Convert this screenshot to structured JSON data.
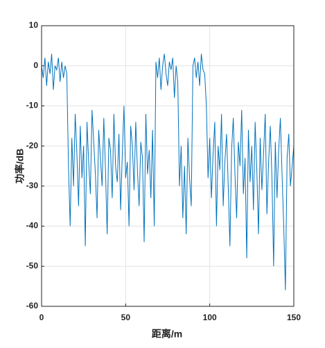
{
  "chart_data": {
    "type": "line",
    "xlabel": "距离/m",
    "ylabel": "功率/dB",
    "x": [
      0,
      1,
      2,
      3,
      4,
      5,
      6,
      7,
      8,
      9,
      10,
      11,
      12,
      13,
      14,
      15,
      16,
      17,
      18,
      19,
      20,
      21,
      22,
      23,
      24,
      25,
      26,
      27,
      28,
      29,
      30,
      31,
      32,
      33,
      34,
      35,
      36,
      37,
      38,
      39,
      40,
      41,
      42,
      43,
      44,
      45,
      46,
      47,
      48,
      49,
      50,
      51,
      52,
      53,
      54,
      55,
      56,
      57,
      58,
      59,
      60,
      61,
      62,
      63,
      64,
      65,
      66,
      67,
      68,
      69,
      70,
      71,
      72,
      73,
      74,
      75,
      76,
      77,
      78,
      79,
      80,
      81,
      82,
      83,
      84,
      85,
      86,
      87,
      88,
      89,
      90,
      91,
      92,
      93,
      94,
      95,
      96,
      97,
      98,
      99,
      100,
      101,
      102,
      103,
      104,
      105,
      106,
      107,
      108,
      109,
      110,
      111,
      112,
      113,
      114,
      115,
      116,
      117,
      118,
      119,
      120,
      121,
      122,
      123,
      124,
      125,
      126,
      127,
      128,
      129,
      130,
      131,
      132,
      133,
      134,
      135,
      136,
      137,
      138,
      139,
      140,
      141,
      142,
      143,
      144,
      145,
      146,
      147,
      148,
      149,
      150
    ],
    "series": [
      {
        "color": "#0072bd",
        "values": [
          0,
          -3,
          2,
          -5,
          1,
          -2,
          3,
          -6,
          0,
          -1,
          2,
          -4,
          1,
          -3,
          0,
          -2,
          -25,
          -40,
          -18,
          -30,
          -12,
          -22,
          -35,
          -15,
          -28,
          -20,
          -45,
          -14,
          -24,
          -32,
          -11,
          -19,
          -27,
          -38,
          -16,
          -23,
          -30,
          -13,
          -26,
          -42,
          -18,
          -21,
          -33,
          -12,
          -25,
          -29,
          -17,
          -36,
          -22,
          -10,
          -28,
          -24,
          -40,
          -15,
          -20,
          -31,
          -14,
          -26,
          -35,
          -19,
          -23,
          -44,
          -12,
          -27,
          -21,
          -33,
          -16,
          -40,
          1,
          -3,
          2,
          -6,
          0,
          3,
          -2,
          -5,
          1,
          -1,
          2,
          -8,
          0,
          -4,
          -30,
          -20,
          -38,
          -25,
          -42,
          -18,
          -28,
          -35,
          0,
          2,
          -3,
          1,
          -5,
          3,
          -1,
          -2,
          -10,
          -28,
          -18,
          -33,
          -22,
          -14,
          -40,
          -20,
          -26,
          -12,
          -35,
          -24,
          -17,
          -30,
          -45,
          -21,
          -13,
          -27,
          -38,
          -19,
          -25,
          -11,
          -32,
          -23,
          -48,
          -16,
          -29,
          -20,
          -36,
          -14,
          -26,
          -42,
          -18,
          -31,
          -22,
          -12,
          -37,
          -24,
          -15,
          -28,
          -50,
          -19,
          -33,
          -21,
          -13,
          -27,
          -40,
          -56,
          -23,
          -17,
          -30,
          -25,
          -20
        ]
      }
    ],
    "xlim": [
      0,
      150
    ],
    "xticks": [
      0,
      50,
      100,
      150
    ],
    "ylim": [
      -60,
      10
    ],
    "yticks": [
      10,
      0,
      -10,
      -20,
      -30,
      -40,
      -50,
      -60
    ],
    "grid": true
  }
}
